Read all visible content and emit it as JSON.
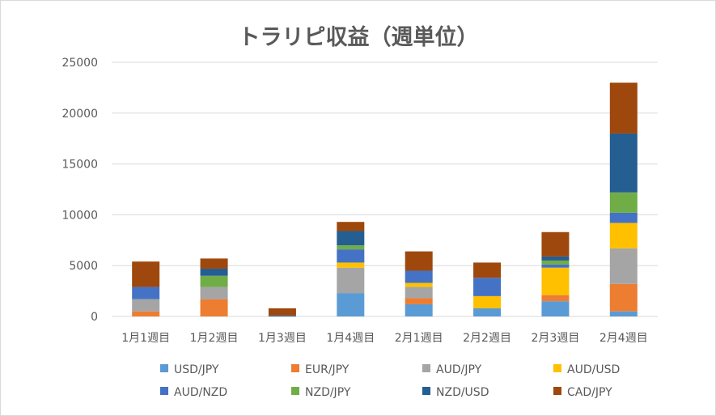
{
  "chart_data": {
    "type": "bar",
    "stacked": true,
    "title": "トラリピ収益（週単位）",
    "xlabel": "",
    "ylabel": "",
    "ylim": [
      0,
      25000
    ],
    "yticks": [
      0,
      5000,
      10000,
      15000,
      20000,
      25000
    ],
    "grid": true,
    "legend_position": "bottom",
    "categories": [
      "1月1週目",
      "1月2週目",
      "1月3週目",
      "1月4週目",
      "2月1週目",
      "2月2週目",
      "2月3週目",
      "2月4週目"
    ],
    "series": [
      {
        "name": "USD/JPY",
        "color": "#5b9bd5",
        "values": [
          0,
          0,
          0,
          2300,
          1200,
          800,
          1500,
          500
        ]
      },
      {
        "name": "EUR/JPY",
        "color": "#ed7d31",
        "values": [
          500,
          1700,
          0,
          0,
          600,
          0,
          600,
          2700
        ]
      },
      {
        "name": "AUD/JPY",
        "color": "#a5a5a5",
        "values": [
          1200,
          1200,
          0,
          2500,
          1100,
          0,
          0,
          3500
        ]
      },
      {
        "name": "AUD/USD",
        "color": "#ffc000",
        "values": [
          0,
          0,
          0,
          500,
          400,
          1200,
          2700,
          2500
        ]
      },
      {
        "name": "AUD/NZD",
        "color": "#4472c4",
        "values": [
          1200,
          0,
          0,
          1300,
          1200,
          1800,
          300,
          1000
        ]
      },
      {
        "name": "NZD/JPY",
        "color": "#70ad47",
        "values": [
          0,
          1100,
          0,
          400,
          0,
          0,
          400,
          2000
        ]
      },
      {
        "name": "NZD/USD",
        "color": "#255e91",
        "values": [
          0,
          700,
          100,
          1400,
          0,
          0,
          400,
          5800
        ]
      },
      {
        "name": "CAD/JPY",
        "color": "#9e480e",
        "values": [
          2500,
          1000,
          700,
          900,
          1900,
          1500,
          2400,
          5000
        ]
      }
    ]
  }
}
